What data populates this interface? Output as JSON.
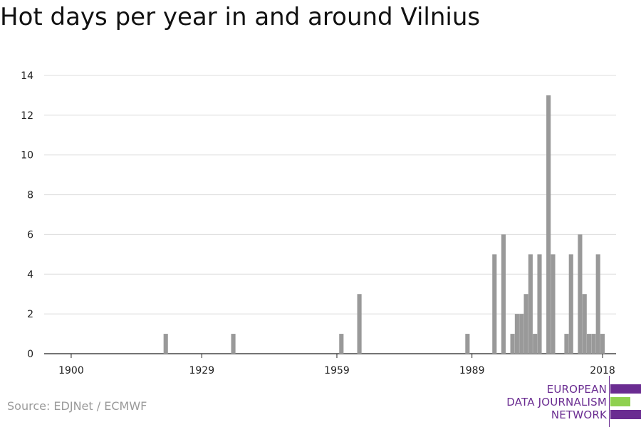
{
  "title": "Hot days per year in and around Vilnius",
  "source": "Source: EDJNet / ECMWF",
  "logo": {
    "lines": [
      "EUROPEAN",
      "DATA JOURNALISM",
      "NETWORK"
    ],
    "colors": {
      "purple": "#6a2c91",
      "green": "#8fd14f"
    }
  },
  "chart_data": {
    "type": "bar",
    "title": "Hot days per year in and around Vilnius",
    "xlabel": "",
    "ylabel": "",
    "xlim": [
      1894,
      2021
    ],
    "ylim": [
      0,
      14
    ],
    "y_ticks": [
      0,
      2,
      4,
      6,
      8,
      10,
      12,
      14
    ],
    "x_ticks": [
      1900,
      1929,
      1959,
      1989,
      2018
    ],
    "grid": true,
    "bar_color": "#999999",
    "x": [
      1921,
      1936,
      1960,
      1964,
      1988,
      1994,
      1996,
      1998,
      1999,
      2000,
      2001,
      2002,
      2003,
      2004,
      2006,
      2007,
      2010,
      2011,
      2013,
      2014,
      2015,
      2016,
      2017,
      2018
    ],
    "values": [
      1,
      1,
      1,
      3,
      1,
      5,
      6,
      1,
      2,
      2,
      3,
      5,
      1,
      5,
      13,
      5,
      1,
      5,
      6,
      3,
      1,
      1,
      5,
      1
    ]
  }
}
